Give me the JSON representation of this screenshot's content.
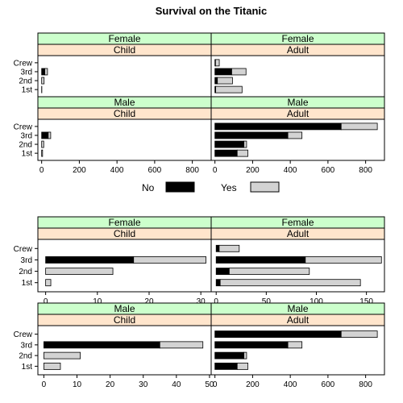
{
  "title": "Survival on the Titanic",
  "colors": {
    "no": "#000000",
    "yes": "#d3d3d3",
    "strip_sex": "#ccffcc",
    "strip_age": "#ffe5cc"
  },
  "legend": {
    "no_label": "No",
    "yes_label": "Yes"
  },
  "chart_data": [
    {
      "type": "bar",
      "orientation": "horizontal",
      "stacked": true,
      "scales": "shared",
      "categories": [
        "Crew",
        "3rd",
        "2nd",
        "1st"
      ],
      "xlim": [
        -20,
        900
      ],
      "xticks": [
        0,
        200,
        400,
        600,
        800
      ],
      "panels": [
        {
          "sex": "Female",
          "age": "Child",
          "no": [
            0,
            17,
            0,
            0
          ],
          "yes": [
            0,
            14,
            13,
            1
          ]
        },
        {
          "sex": "Female",
          "age": "Adult",
          "no": [
            3,
            89,
            13,
            4
          ],
          "yes": [
            20,
            76,
            80,
            140
          ]
        },
        {
          "sex": "Male",
          "age": "Child",
          "no": [
            0,
            35,
            0,
            0
          ],
          "yes": [
            0,
            13,
            11,
            5
          ]
        },
        {
          "sex": "Male",
          "age": "Adult",
          "no": [
            670,
            387,
            154,
            118
          ],
          "yes": [
            192,
            75,
            14,
            57
          ]
        }
      ]
    },
    {
      "type": "bar",
      "orientation": "horizontal",
      "stacked": true,
      "scales": "free",
      "categories": [
        "Crew",
        "3rd",
        "2nd",
        "1st"
      ],
      "panels": [
        {
          "sex": "Female",
          "age": "Child",
          "xlim": [
            -1.5,
            32
          ],
          "xticks": [
            0,
            10,
            20,
            30
          ],
          "no": [
            0,
            17,
            0,
            0
          ],
          "yes": [
            0,
            14,
            13,
            1
          ]
        },
        {
          "sex": "Female",
          "age": "Adult",
          "xlim": [
            -5,
            168
          ],
          "xticks": [
            0,
            50,
            100,
            150
          ],
          "no": [
            3,
            89,
            13,
            4
          ],
          "yes": [
            20,
            76,
            80,
            140
          ]
        },
        {
          "sex": "Male",
          "age": "Child",
          "xlim": [
            -1.8,
            50.5
          ],
          "xticks": [
            0,
            10,
            20,
            30,
            40,
            50
          ],
          "no": [
            0,
            35,
            0,
            0
          ],
          "yes": [
            0,
            13,
            11,
            5
          ]
        },
        {
          "sex": "Male",
          "age": "Adult",
          "xlim": [
            -20,
            900
          ],
          "xticks": [
            0,
            200,
            400,
            600,
            800
          ],
          "no": [
            670,
            387,
            154,
            118
          ],
          "yes": [
            192,
            75,
            14,
            57
          ]
        }
      ]
    }
  ]
}
